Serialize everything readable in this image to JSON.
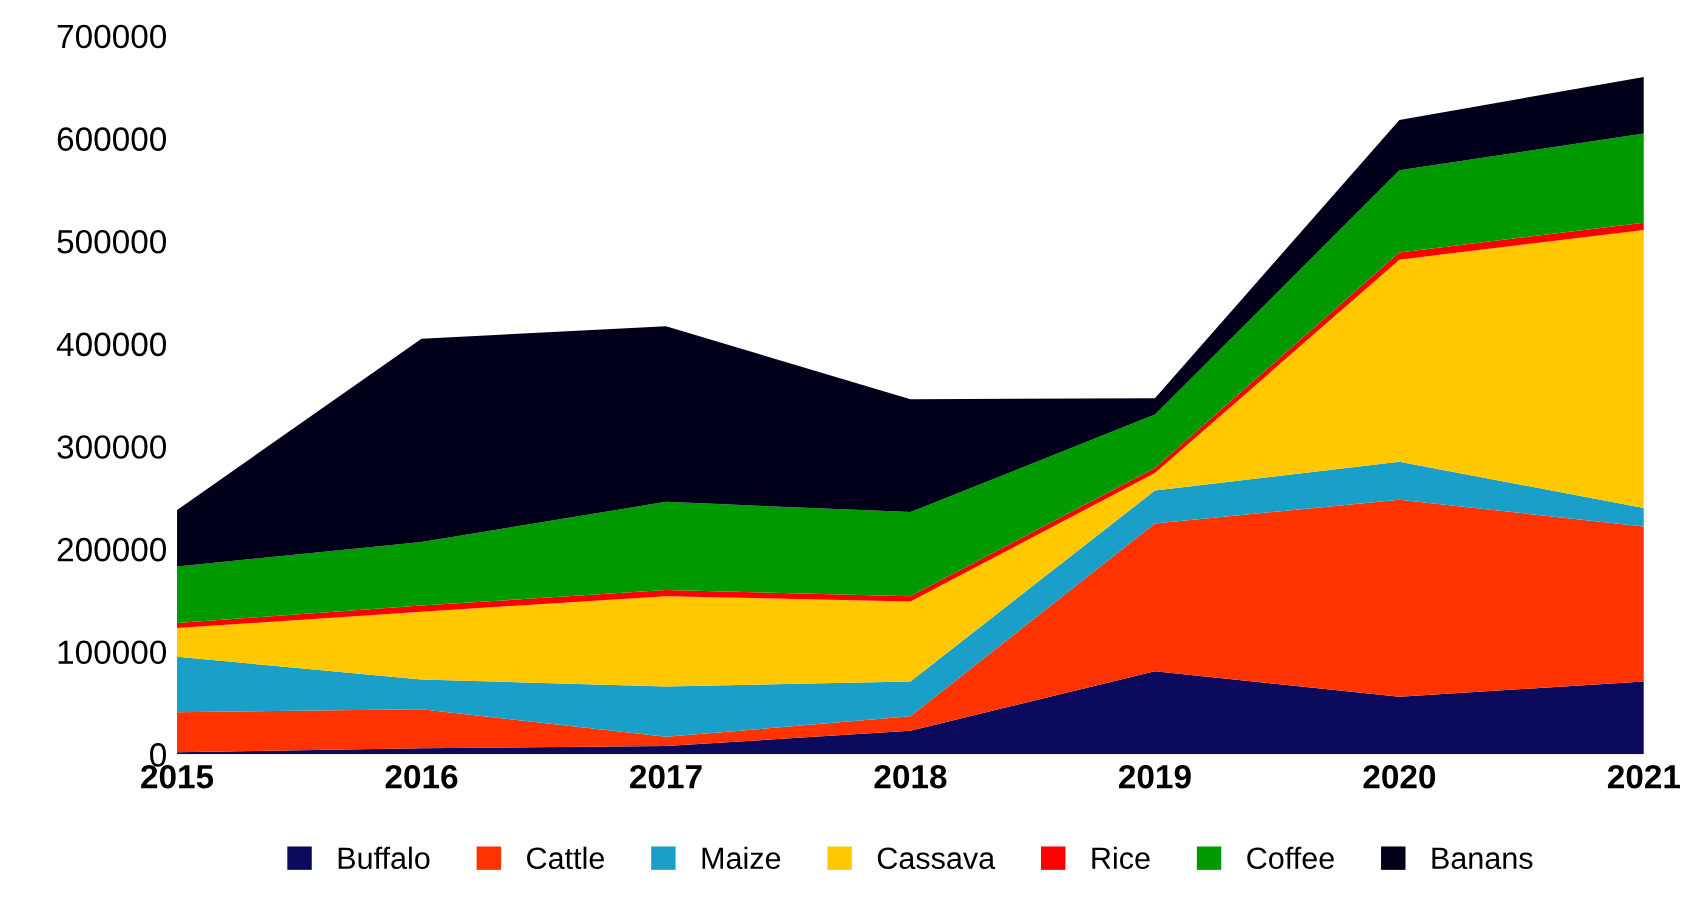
{
  "chart_data": {
    "type": "area",
    "stacked": true,
    "x": [
      2015,
      2016,
      2017,
      2018,
      2019,
      2020,
      2021
    ],
    "xlim": [
      2015,
      2021
    ],
    "xticks": [
      2015,
      2016,
      2017,
      2018,
      2019,
      2020,
      2021
    ],
    "ylim": [
      0,
      700000
    ],
    "yticks": [
      0,
      100000,
      200000,
      300000,
      400000,
      500000,
      600000,
      700000
    ],
    "grid": false,
    "legend": "bottom",
    "series": [
      {
        "name": "Buffalo",
        "color": "#0b0a5c",
        "values": [
          2000,
          6000,
          8000,
          23000,
          81000,
          56000,
          71000
        ]
      },
      {
        "name": "Cattle",
        "color": "#ff3300",
        "values": [
          39000,
          38000,
          9000,
          14000,
          144000,
          192000,
          151000
        ]
      },
      {
        "name": "Maize",
        "color": "#1aa0c8",
        "values": [
          54000,
          29000,
          49000,
          34000,
          32000,
          37000,
          18000
        ]
      },
      {
        "name": "Cassava",
        "color": "#ffc800",
        "values": [
          28000,
          66000,
          88000,
          78000,
          17000,
          197000,
          271000
        ]
      },
      {
        "name": "Rice",
        "color": "#ff0000",
        "values": [
          5000,
          6000,
          6000,
          5000,
          5000,
          7000,
          7000
        ]
      },
      {
        "name": "Coffee",
        "color": "#009900",
        "values": [
          55000,
          62000,
          86000,
          82000,
          52000,
          80000,
          87000
        ]
      },
      {
        "name": "Banans",
        "color": "#00001a",
        "values": [
          55000,
          198000,
          171000,
          110000,
          16000,
          49000,
          55000
        ]
      }
    ]
  }
}
